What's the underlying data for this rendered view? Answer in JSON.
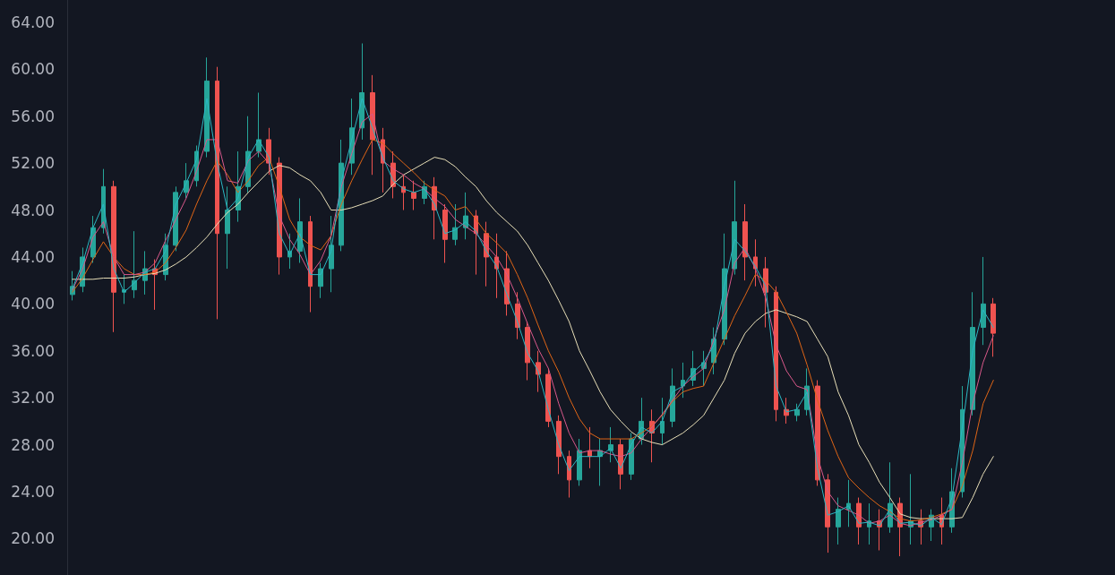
{
  "chart_data": {
    "type": "candlestick",
    "categories": [
      null,
      null,
      null,
      null,
      null,
      null,
      null,
      null,
      null,
      null,
      null,
      null,
      null,
      null,
      null,
      null,
      null,
      null,
      null,
      null,
      null,
      null,
      null,
      null,
      null,
      null,
      null,
      null,
      null,
      null,
      null,
      null,
      null,
      null,
      null,
      null,
      null,
      null,
      null,
      null,
      null,
      null,
      null,
      null,
      null,
      null,
      null,
      null,
      null,
      null,
      null,
      null,
      null,
      null,
      null,
      null,
      null,
      null,
      null,
      null,
      null,
      null,
      null,
      null,
      null,
      null,
      null,
      null,
      null,
      null,
      null,
      null,
      null,
      null,
      null,
      null,
      null,
      null,
      null,
      null,
      null,
      null,
      null,
      null,
      null,
      null,
      null,
      null,
      null,
      null
    ],
    "ohlc": [
      [
        40.8,
        42.8,
        40.3,
        41.5
      ],
      [
        41.5,
        44.8,
        41,
        44
      ],
      [
        44,
        47.5,
        43.5,
        46.5
      ],
      [
        46.5,
        51.5,
        46,
        50
      ],
      [
        50,
        50.5,
        37.6,
        41
      ],
      [
        41,
        42.5,
        40,
        41.2
      ],
      [
        41.2,
        46.2,
        40.5,
        42
      ],
      [
        42,
        44.5,
        40.8,
        43
      ],
      [
        43,
        43.8,
        39.5,
        42.5
      ],
      [
        42.5,
        46,
        42,
        45
      ],
      [
        45,
        50,
        44.5,
        49.5
      ],
      [
        49.5,
        52,
        49,
        50.5
      ],
      [
        50.5,
        53.5,
        50,
        53
      ],
      [
        53,
        61,
        52.5,
        59
      ],
      [
        59,
        60.2,
        38.7,
        46
      ],
      [
        46,
        50,
        43,
        48
      ],
      [
        48,
        53,
        47,
        50
      ],
      [
        50,
        56,
        49.5,
        53
      ],
      [
        53,
        58,
        52.5,
        54
      ],
      [
        54,
        55,
        51,
        52
      ],
      [
        52,
        52.5,
        42.5,
        44
      ],
      [
        44,
        46,
        43,
        44.5
      ],
      [
        44.5,
        49,
        43.5,
        47
      ],
      [
        47,
        47.5,
        39.3,
        41.5
      ],
      [
        41.5,
        43.5,
        40.5,
        43
      ],
      [
        43,
        47.5,
        41,
        45
      ],
      [
        45,
        54,
        44.5,
        52
      ],
      [
        52,
        57.5,
        51,
        55
      ],
      [
        55,
        62.2,
        54,
        58
      ],
      [
        58,
        59.5,
        51,
        54
      ],
      [
        54,
        55,
        49.5,
        52
      ],
      [
        52,
        53,
        49,
        50
      ],
      [
        50,
        51,
        48,
        49.5
      ],
      [
        49.5,
        50.5,
        48,
        49
      ],
      [
        49,
        50.5,
        48.5,
        50
      ],
      [
        50,
        50.8,
        45.5,
        48
      ],
      [
        48,
        48.5,
        43.5,
        45.5
      ],
      [
        45.5,
        48.5,
        45,
        46.5
      ],
      [
        46.5,
        49.5,
        45.5,
        47.5
      ],
      [
        47.5,
        48,
        42.5,
        46
      ],
      [
        46,
        47,
        41.5,
        44
      ],
      [
        44,
        46,
        40.5,
        43
      ],
      [
        43,
        44.5,
        39,
        40
      ],
      [
        40,
        41,
        37,
        38
      ],
      [
        38,
        38.5,
        33.5,
        35
      ],
      [
        35,
        36,
        32.5,
        34
      ],
      [
        34,
        34.5,
        29.5,
        30
      ],
      [
        30,
        30.5,
        25.5,
        27
      ],
      [
        27,
        27.5,
        23.5,
        25
      ],
      [
        25,
        28.5,
        24.5,
        27.5
      ],
      [
        27.5,
        29.5,
        26,
        27
      ],
      [
        27,
        28.5,
        24.5,
        27.5
      ],
      [
        27.5,
        29.5,
        26.5,
        28
      ],
      [
        28,
        28.5,
        24.2,
        25.5
      ],
      [
        25.5,
        29,
        25,
        28.5
      ],
      [
        28.5,
        32,
        28,
        30
      ],
      [
        30,
        31,
        26.5,
        29
      ],
      [
        29,
        32,
        28,
        30
      ],
      [
        30,
        34.5,
        29.5,
        33
      ],
      [
        33,
        35,
        32,
        33.5
      ],
      [
        33.5,
        36,
        33,
        34.5
      ],
      [
        34.5,
        36,
        33,
        35
      ],
      [
        35,
        38,
        34,
        37
      ],
      [
        37,
        46,
        36.5,
        43
      ],
      [
        43,
        50.5,
        42.5,
        47
      ],
      [
        47,
        48.5,
        42,
        44
      ],
      [
        44,
        45.5,
        41.5,
        43
      ],
      [
        43,
        44,
        38,
        41
      ],
      [
        41,
        41.5,
        30,
        31
      ],
      [
        31,
        32,
        29.8,
        30.5
      ],
      [
        30.5,
        31.5,
        30,
        31
      ],
      [
        31,
        34.5,
        30.5,
        33
      ],
      [
        33,
        33.5,
        24.5,
        25
      ],
      [
        25,
        25.5,
        18.8,
        21
      ],
      [
        21,
        23.5,
        19.5,
        22.5
      ],
      [
        22.5,
        25,
        21,
        23
      ],
      [
        23,
        23.5,
        19.5,
        21
      ],
      [
        21,
        23,
        19.5,
        21.5
      ],
      [
        21.5,
        22.5,
        19,
        21
      ],
      [
        21,
        26.5,
        20.5,
        23
      ],
      [
        23,
        23.5,
        18.5,
        21
      ],
      [
        21,
        25.5,
        19.5,
        21.5
      ],
      [
        21.5,
        22.5,
        19.5,
        21
      ],
      [
        21,
        22.5,
        19.8,
        22
      ],
      [
        22,
        23.5,
        19.5,
        21
      ],
      [
        21,
        26,
        20.5,
        24
      ],
      [
        24,
        33,
        23.5,
        31
      ],
      [
        31,
        41,
        30.5,
        38
      ],
      [
        38,
        44,
        36.5,
        40
      ],
      [
        40,
        40.5,
        35.5,
        37.5
      ]
    ],
    "colors": [
      "#26a69a",
      "#26a69a",
      "#26a69a",
      "#26a69a",
      "#ef5350",
      "#26a69a",
      "#26a69a",
      "#26a69a",
      "#ef5350",
      "#26a69a",
      "#26a69a",
      "#26a69a",
      "#26a69a",
      "#26a69a",
      "#ef5350",
      "#26a69a",
      "#26a69a",
      "#26a69a",
      "#26a69a",
      "#ef5350",
      "#ef5350",
      "#26a69a",
      "#26a69a",
      "#ef5350",
      "#26a69a",
      "#26a69a",
      "#26a69a",
      "#26a69a",
      "#26a69a",
      "#ef5350",
      "#ef5350",
      "#ef5350",
      "#ef5350",
      "#ef5350",
      "#26a69a",
      "#ef5350",
      "#ef5350",
      "#26a69a",
      "#26a69a",
      "#ef5350",
      "#ef5350",
      "#ef5350",
      "#ef5350",
      "#ef5350",
      "#ef5350",
      "#ef5350",
      "#ef5350",
      "#ef5350",
      "#ef5350",
      "#26a69a",
      "#ef5350",
      "#26a69a",
      "#26a69a",
      "#ef5350",
      "#26a69a",
      "#26a69a",
      "#ef5350",
      "#26a69a",
      "#26a69a",
      "#26a69a",
      "#26a69a",
      "#26a69a",
      "#26a69a",
      "#26a69a",
      "#26a69a",
      "#ef5350",
      "#ef5350",
      "#ef5350",
      "#ef5350",
      "#ef5350",
      "#26a69a",
      "#26a69a",
      "#ef5350",
      "#ef5350",
      "#26a69a",
      "#26a69a",
      "#ef5350",
      "#26a69a",
      "#ef5350",
      "#26a69a",
      "#ef5350",
      "#26a69a",
      "#ef5350",
      "#26a69a",
      "#ef5350",
      "#26a69a",
      "#26a69a",
      "#26a69a",
      "#26a69a",
      "#ef5350"
    ],
    "series": [
      {
        "type": "line",
        "color": "#e8dfb8",
        "values": [
          42.1,
          42.1,
          42.1,
          42.2,
          42.2,
          42.2,
          42.3,
          42.5,
          42.6,
          42.9,
          43.4,
          44,
          44.8,
          45.7,
          46.8,
          47.8,
          48.5,
          49.5,
          50.4,
          51.3,
          51.8,
          51.6,
          51,
          50.5,
          49.5,
          48,
          48,
          48.2,
          48.5,
          48.8,
          49.2,
          50.2,
          51,
          51.5,
          52,
          52.5,
          52.3,
          51.7,
          50.8,
          50,
          48.8,
          47.8,
          47,
          46.2,
          45,
          43.5,
          42,
          40.3,
          38.5,
          36,
          34.3,
          32.5,
          31,
          30,
          29.1,
          28.5,
          28.2,
          28,
          28.5,
          29,
          29.7,
          30.5,
          32,
          33.5,
          35.8,
          37.5,
          38.5,
          39.2,
          39.5,
          39.2,
          38.9,
          38.5,
          37,
          35.5,
          32.5,
          30.5,
          28,
          26.5,
          24.8,
          23.5,
          22.1,
          21.8,
          21.7,
          21.7,
          21.7,
          21.7,
          21.8,
          23.5,
          25.5,
          27
        ]
      },
      {
        "type": "line",
        "color": "#e06516",
        "values": [
          41,
          42.2,
          43.8,
          45.3,
          44,
          43,
          42.5,
          42.5,
          42.7,
          43.5,
          44.8,
          46.3,
          48.5,
          50.5,
          52.2,
          51,
          49.5,
          50.5,
          51.8,
          52.5,
          50,
          47.2,
          45.7,
          45,
          44.6,
          45.8,
          48.5,
          50.5,
          52.3,
          54,
          53.7,
          52.8,
          52,
          51.2,
          50.3,
          49.7,
          49.2,
          48,
          48.3,
          47.2,
          46,
          45.2,
          44.3,
          42.5,
          40.5,
          38.2,
          36,
          34.2,
          32,
          30.2,
          29,
          28.5,
          28.5,
          28.5,
          28.5,
          29,
          29.6,
          30.5,
          31.7,
          32.5,
          32.8,
          33,
          35,
          37,
          39,
          40.7,
          42.5,
          42,
          41,
          39.3,
          37.5,
          34.8,
          31.8,
          29.2,
          27,
          25.2,
          24.3,
          23.5,
          22.8,
          22.3,
          21.7,
          21.5,
          21.6,
          21.8,
          22.1,
          22.5,
          24.5,
          27.5,
          31.5,
          33.5
        ]
      },
      {
        "type": "line",
        "color": "#d8588a",
        "values": [
          41.2,
          43,
          45.7,
          47,
          44,
          42.5,
          42.5,
          42.7,
          43.5,
          45.4,
          47.2,
          49,
          51.3,
          54,
          54,
          50.5,
          50.3,
          52.2,
          53,
          52,
          47.5,
          45.5,
          44.2,
          42.5,
          43.7,
          45.8,
          50,
          52.8,
          55.5,
          56.2,
          52.2,
          51.5,
          51,
          50.3,
          49.8,
          49,
          48.3,
          47.2,
          46.6,
          46,
          45,
          44,
          42.5,
          40.5,
          38.3,
          36.2,
          34.5,
          31.5,
          29,
          27.3,
          27.5,
          27.5,
          27.2,
          27,
          27.3,
          28.5,
          29.5,
          30.6,
          31.8,
          33,
          33.8,
          34.5,
          37,
          39.5,
          43.5,
          44.8,
          43,
          40.5,
          36.5,
          34.3,
          33,
          32.7,
          27,
          24,
          22.8,
          22.4,
          22,
          21.3,
          21.5,
          22,
          21.3,
          21.1,
          21.4,
          21.6,
          22,
          22.5,
          26.5,
          31.5,
          35,
          37.3
        ]
      },
      {
        "type": "line",
        "color": "#2bb7c4",
        "values": [
          41.3,
          43.5,
          46.5,
          48.5,
          43,
          41,
          41.8,
          42.7,
          43,
          44.5,
          48.5,
          50.3,
          52.3,
          57.5,
          52,
          48,
          49,
          52.5,
          54,
          52.5,
          46,
          44.2,
          46,
          42.5,
          42.5,
          44.5,
          50.5,
          54,
          57.5,
          55,
          52.5,
          50.5,
          49.8,
          49.5,
          49.8,
          48.5,
          46,
          46.3,
          47,
          46.2,
          44.5,
          43.2,
          40.8,
          38.5,
          35.8,
          34.3,
          31,
          28,
          25.8,
          27,
          27,
          27,
          27.7,
          26,
          28,
          29.5,
          29,
          30,
          32.5,
          33,
          34.2,
          35,
          36.5,
          41.5,
          45.5,
          44.5,
          43.2,
          41.5,
          33,
          30.8,
          31,
          32.5,
          26,
          22,
          22.3,
          22.8,
          21.3,
          21.4,
          21.1,
          22.5,
          21.3,
          21.4,
          21.1,
          21.8,
          21.2,
          23.5,
          29.5,
          36,
          39.5,
          38
        ]
      }
    ],
    "ylim": [
      16.9,
      65.9
    ],
    "yticks": [
      {
        "value": 20,
        "label": "20.00"
      },
      {
        "value": 24,
        "label": "24.00"
      },
      {
        "value": 28,
        "label": "28.00"
      },
      {
        "value": 32,
        "label": "32.00"
      },
      {
        "value": 36,
        "label": "36.00"
      },
      {
        "value": 40,
        "label": "40.00"
      },
      {
        "value": 44,
        "label": "44.00"
      },
      {
        "value": 48,
        "label": "48.00"
      },
      {
        "value": 52,
        "label": "52.00"
      },
      {
        "value": 56,
        "label": "56.00"
      },
      {
        "value": 60,
        "label": "60.00"
      },
      {
        "value": 64,
        "label": "64.00"
      }
    ],
    "tick_labels": "y",
    "grid": false,
    "marker": "none",
    "line_style": "solid"
  }
}
